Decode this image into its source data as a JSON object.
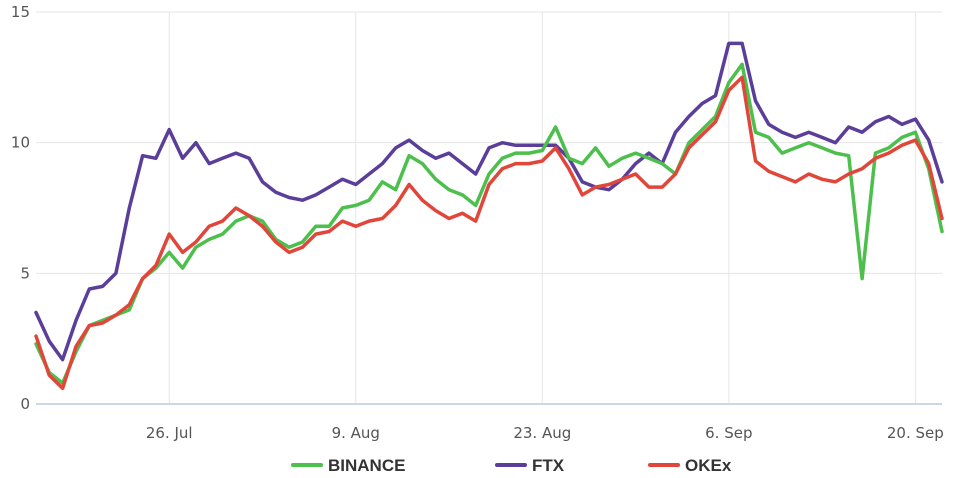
{
  "colors": {
    "binance": "#4cbf4c",
    "ftx": "#5b3e99",
    "okex": "#e0463a",
    "grid": "#e6e6e6",
    "baseline": "#ccd6eb"
  },
  "chart_data": {
    "type": "line",
    "title": "",
    "xlabel": "",
    "ylabel": "",
    "ylim": [
      0,
      15
    ],
    "yticks": [
      0,
      5,
      10,
      15
    ],
    "xlim": [
      "2021-07-16",
      "2021-09-22"
    ],
    "xticks": [
      {
        "date": "2021-07-26",
        "label": "26. Jul"
      },
      {
        "date": "2021-08-09",
        "label": "9. Aug"
      },
      {
        "date": "2021-08-23",
        "label": "23. Aug"
      },
      {
        "date": "2021-09-06",
        "label": "6. Sep"
      },
      {
        "date": "2021-09-20",
        "label": "20. Sep"
      }
    ],
    "grid": true,
    "legend": "bottom-center",
    "x": [
      "2021-07-16",
      "2021-07-17",
      "2021-07-18",
      "2021-07-19",
      "2021-07-20",
      "2021-07-21",
      "2021-07-22",
      "2021-07-23",
      "2021-07-24",
      "2021-07-25",
      "2021-07-26",
      "2021-07-27",
      "2021-07-28",
      "2021-07-29",
      "2021-07-30",
      "2021-07-31",
      "2021-08-01",
      "2021-08-02",
      "2021-08-03",
      "2021-08-04",
      "2021-08-05",
      "2021-08-06",
      "2021-08-07",
      "2021-08-08",
      "2021-08-09",
      "2021-08-10",
      "2021-08-11",
      "2021-08-12",
      "2021-08-13",
      "2021-08-14",
      "2021-08-15",
      "2021-08-16",
      "2021-08-17",
      "2021-08-18",
      "2021-08-19",
      "2021-08-20",
      "2021-08-21",
      "2021-08-22",
      "2021-08-23",
      "2021-08-24",
      "2021-08-25",
      "2021-08-26",
      "2021-08-27",
      "2021-08-28",
      "2021-08-29",
      "2021-08-30",
      "2021-08-31",
      "2021-09-01",
      "2021-09-02",
      "2021-09-03",
      "2021-09-04",
      "2021-09-05",
      "2021-09-06",
      "2021-09-07",
      "2021-09-08",
      "2021-09-09",
      "2021-09-10",
      "2021-09-11",
      "2021-09-12",
      "2021-09-13",
      "2021-09-14",
      "2021-09-15",
      "2021-09-16",
      "2021-09-17",
      "2021-09-18",
      "2021-09-19",
      "2021-09-20",
      "2021-09-21",
      "2021-09-22"
    ],
    "series": [
      {
        "name": "BINANCE",
        "values": [
          2.3,
          1.2,
          0.8,
          2.0,
          3.0,
          3.2,
          3.4,
          3.6,
          4.8,
          5.2,
          5.8,
          5.2,
          6.0,
          6.3,
          6.5,
          7.0,
          7.2,
          7.0,
          6.3,
          6.0,
          6.2,
          6.8,
          6.8,
          7.5,
          7.6,
          7.8,
          8.5,
          8.2,
          9.5,
          9.2,
          8.6,
          8.2,
          8.0,
          7.6,
          8.8,
          9.4,
          9.6,
          9.6,
          9.7,
          10.6,
          9.4,
          9.2,
          9.8,
          9.1,
          9.4,
          9.6,
          9.4,
          9.2,
          8.8,
          10.0,
          10.5,
          11.0,
          12.3,
          13.0,
          10.4,
          10.2,
          9.6,
          9.8,
          10.0,
          9.8,
          9.6,
          9.5,
          4.8,
          9.6,
          9.8,
          10.2,
          10.4,
          9.0,
          6.6
        ]
      },
      {
        "name": "FTX",
        "values": [
          3.5,
          2.4,
          1.7,
          3.2,
          4.4,
          4.5,
          5.0,
          7.5,
          9.5,
          9.4,
          10.5,
          9.4,
          10.0,
          9.2,
          9.4,
          9.6,
          9.4,
          8.5,
          8.1,
          7.9,
          7.8,
          8.0,
          8.3,
          8.6,
          8.4,
          8.8,
          9.2,
          9.8,
          10.1,
          9.7,
          9.4,
          9.6,
          9.2,
          8.8,
          9.8,
          10.0,
          9.9,
          9.9,
          9.9,
          9.9,
          9.4,
          8.5,
          8.3,
          8.2,
          8.6,
          9.2,
          9.6,
          9.2,
          10.4,
          11.0,
          11.5,
          11.8,
          13.8,
          13.8,
          11.6,
          10.7,
          10.4,
          10.2,
          10.4,
          10.2,
          10.0,
          10.6,
          10.4,
          10.8,
          11.0,
          10.7,
          10.9,
          10.1,
          8.5
        ]
      },
      {
        "name": "OKEx",
        "values": [
          2.6,
          1.1,
          0.6,
          2.2,
          3.0,
          3.1,
          3.4,
          3.8,
          4.8,
          5.3,
          6.5,
          5.8,
          6.2,
          6.8,
          7.0,
          7.5,
          7.2,
          6.8,
          6.2,
          5.8,
          6.0,
          6.5,
          6.6,
          7.0,
          6.8,
          7.0,
          7.1,
          7.6,
          8.4,
          7.8,
          7.4,
          7.1,
          7.3,
          7.0,
          8.4,
          9.0,
          9.2,
          9.2,
          9.3,
          9.8,
          9.0,
          8.0,
          8.3,
          8.4,
          8.6,
          8.8,
          8.3,
          8.3,
          8.8,
          9.8,
          10.3,
          10.8,
          12.0,
          12.5,
          9.3,
          8.9,
          8.7,
          8.5,
          8.8,
          8.6,
          8.5,
          8.8,
          9.0,
          9.4,
          9.6,
          9.9,
          10.1,
          9.2,
          7.1
        ]
      }
    ]
  }
}
